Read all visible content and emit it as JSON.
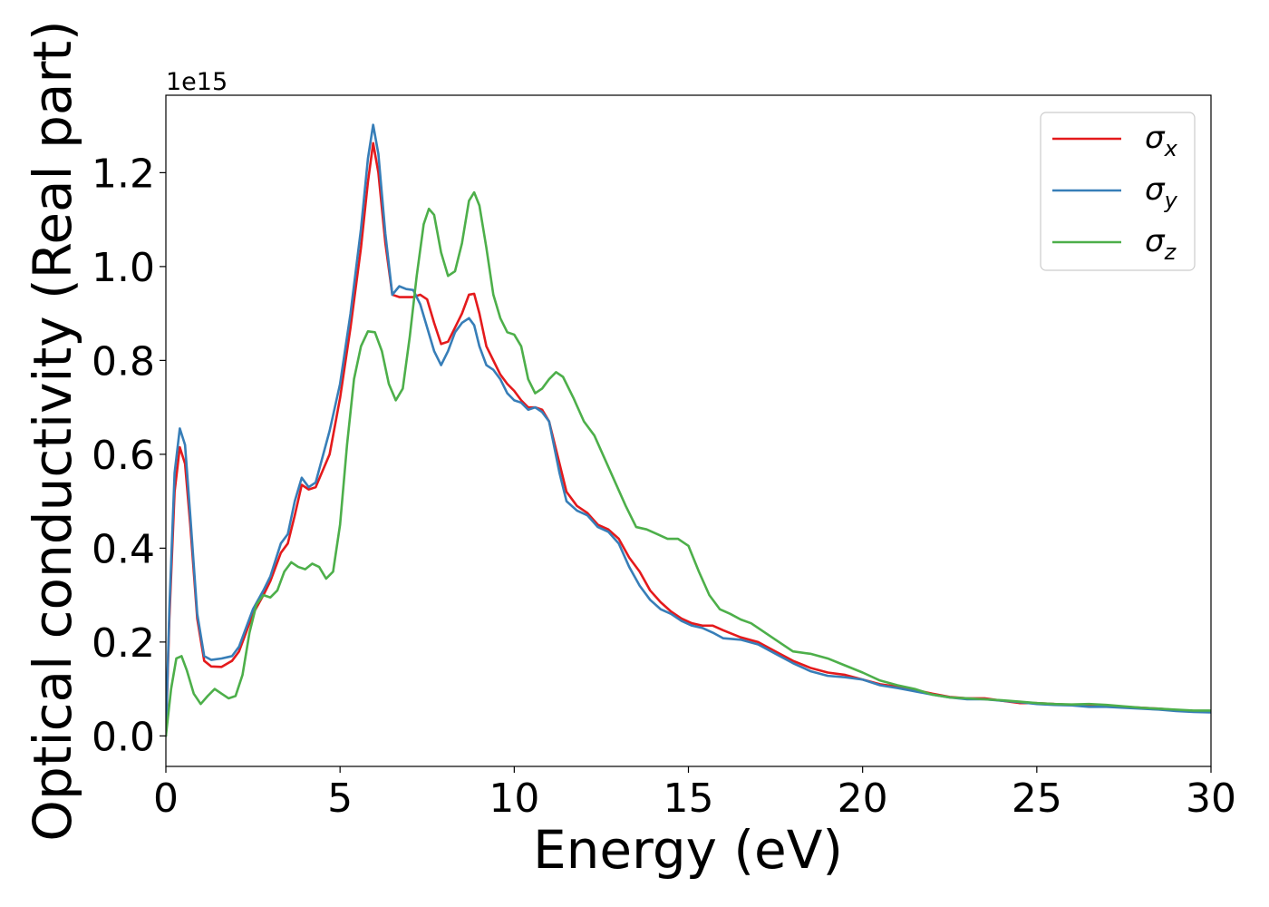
{
  "chart_data": {
    "type": "line",
    "xlabel": "Energy (eV)",
    "ylabel": "Optical conductivity (Real part)",
    "y_offset_text": "1e15",
    "xlim": [
      0,
      30
    ],
    "ylim": [
      -0.065,
      1.365
    ],
    "x_ticks": [
      0,
      5,
      10,
      15,
      20,
      25,
      30
    ],
    "x_tick_labels": [
      "0",
      "5",
      "10",
      "15",
      "20",
      "25",
      "30"
    ],
    "y_ticks": [
      0.0,
      0.2,
      0.4,
      0.6,
      0.8,
      1.0,
      1.2
    ],
    "y_tick_labels": [
      "0.0",
      "0.2",
      "0.4",
      "0.6",
      "0.8",
      "1.0",
      "1.2"
    ],
    "grid": false,
    "legend_position": "top-right",
    "series": [
      {
        "name": "σx",
        "symbol": "σ",
        "subscript": "x",
        "color": "#e41a1c",
        "points": [
          [
            0,
            0
          ],
          [
            0.1,
            0.25
          ],
          [
            0.25,
            0.52
          ],
          [
            0.4,
            0.615
          ],
          [
            0.55,
            0.58
          ],
          [
            0.7,
            0.45
          ],
          [
            0.9,
            0.25
          ],
          [
            1.1,
            0.16
          ],
          [
            1.3,
            0.148
          ],
          [
            1.6,
            0.147
          ],
          [
            1.9,
            0.16
          ],
          [
            2.1,
            0.18
          ],
          [
            2.3,
            0.22
          ],
          [
            2.5,
            0.26
          ],
          [
            2.8,
            0.3
          ],
          [
            3.0,
            0.33
          ],
          [
            3.3,
            0.39
          ],
          [
            3.5,
            0.41
          ],
          [
            3.7,
            0.47
          ],
          [
            3.9,
            0.535
          ],
          [
            4.1,
            0.525
          ],
          [
            4.3,
            0.53
          ],
          [
            4.7,
            0.6
          ],
          [
            5.0,
            0.72
          ],
          [
            5.3,
            0.87
          ],
          [
            5.6,
            1.04
          ],
          [
            5.8,
            1.18
          ],
          [
            5.95,
            1.263
          ],
          [
            6.1,
            1.2
          ],
          [
            6.3,
            1.05
          ],
          [
            6.5,
            0.94
          ],
          [
            6.7,
            0.935
          ],
          [
            6.9,
            0.935
          ],
          [
            7.1,
            0.935
          ],
          [
            7.3,
            0.94
          ],
          [
            7.5,
            0.93
          ],
          [
            7.7,
            0.88
          ],
          [
            7.9,
            0.835
          ],
          [
            8.1,
            0.84
          ],
          [
            8.3,
            0.87
          ],
          [
            8.5,
            0.9
          ],
          [
            8.7,
            0.94
          ],
          [
            8.85,
            0.942
          ],
          [
            9.0,
            0.9
          ],
          [
            9.2,
            0.83
          ],
          [
            9.4,
            0.8
          ],
          [
            9.6,
            0.77
          ],
          [
            9.8,
            0.75
          ],
          [
            10.0,
            0.735
          ],
          [
            10.2,
            0.715
          ],
          [
            10.4,
            0.7
          ],
          [
            10.6,
            0.7
          ],
          [
            10.8,
            0.695
          ],
          [
            11.0,
            0.67
          ],
          [
            11.3,
            0.58
          ],
          [
            11.5,
            0.52
          ],
          [
            11.8,
            0.49
          ],
          [
            12.1,
            0.475
          ],
          [
            12.4,
            0.45
          ],
          [
            12.7,
            0.44
          ],
          [
            13.0,
            0.42
          ],
          [
            13.3,
            0.38
          ],
          [
            13.6,
            0.35
          ],
          [
            13.9,
            0.31
          ],
          [
            14.2,
            0.285
          ],
          [
            14.5,
            0.265
          ],
          [
            14.8,
            0.25
          ],
          [
            15.1,
            0.24
          ],
          [
            15.4,
            0.235
          ],
          [
            15.7,
            0.235
          ],
          [
            16.0,
            0.225
          ],
          [
            16.5,
            0.21
          ],
          [
            17.0,
            0.2
          ],
          [
            17.5,
            0.18
          ],
          [
            18.0,
            0.16
          ],
          [
            18.5,
            0.145
          ],
          [
            19.0,
            0.135
          ],
          [
            19.5,
            0.13
          ],
          [
            20.0,
            0.12
          ],
          [
            20.5,
            0.11
          ],
          [
            21.0,
            0.105
          ],
          [
            21.5,
            0.098
          ],
          [
            22.0,
            0.09
          ],
          [
            22.5,
            0.083
          ],
          [
            23.0,
            0.08
          ],
          [
            23.5,
            0.08
          ],
          [
            24.0,
            0.075
          ],
          [
            24.5,
            0.07
          ],
          [
            25.0,
            0.07
          ],
          [
            25.5,
            0.068
          ],
          [
            26.0,
            0.066
          ],
          [
            26.5,
            0.065
          ],
          [
            27.0,
            0.064
          ],
          [
            27.5,
            0.062
          ],
          [
            28.0,
            0.06
          ],
          [
            28.5,
            0.058
          ],
          [
            29.0,
            0.055
          ],
          [
            29.5,
            0.053
          ],
          [
            30.0,
            0.052
          ]
        ]
      },
      {
        "name": "σy",
        "symbol": "σ",
        "subscript": "y",
        "color": "#377eb8",
        "points": [
          [
            0,
            0
          ],
          [
            0.1,
            0.27
          ],
          [
            0.25,
            0.56
          ],
          [
            0.4,
            0.655
          ],
          [
            0.55,
            0.62
          ],
          [
            0.7,
            0.47
          ],
          [
            0.9,
            0.26
          ],
          [
            1.1,
            0.17
          ],
          [
            1.3,
            0.162
          ],
          [
            1.6,
            0.165
          ],
          [
            1.9,
            0.17
          ],
          [
            2.1,
            0.19
          ],
          [
            2.3,
            0.23
          ],
          [
            2.5,
            0.27
          ],
          [
            2.8,
            0.31
          ],
          [
            3.0,
            0.34
          ],
          [
            3.3,
            0.41
          ],
          [
            3.5,
            0.43
          ],
          [
            3.7,
            0.5
          ],
          [
            3.9,
            0.55
          ],
          [
            4.1,
            0.53
          ],
          [
            4.3,
            0.54
          ],
          [
            4.7,
            0.65
          ],
          [
            5.0,
            0.75
          ],
          [
            5.3,
            0.9
          ],
          [
            5.6,
            1.08
          ],
          [
            5.8,
            1.23
          ],
          [
            5.95,
            1.302
          ],
          [
            6.1,
            1.24
          ],
          [
            6.3,
            1.07
          ],
          [
            6.5,
            0.94
          ],
          [
            6.7,
            0.958
          ],
          [
            6.9,
            0.952
          ],
          [
            7.1,
            0.95
          ],
          [
            7.3,
            0.92
          ],
          [
            7.5,
            0.87
          ],
          [
            7.7,
            0.82
          ],
          [
            7.9,
            0.79
          ],
          [
            8.1,
            0.82
          ],
          [
            8.3,
            0.86
          ],
          [
            8.5,
            0.88
          ],
          [
            8.7,
            0.89
          ],
          [
            8.85,
            0.875
          ],
          [
            9.0,
            0.83
          ],
          [
            9.2,
            0.79
          ],
          [
            9.4,
            0.78
          ],
          [
            9.6,
            0.76
          ],
          [
            9.8,
            0.73
          ],
          [
            10.0,
            0.715
          ],
          [
            10.2,
            0.71
          ],
          [
            10.4,
            0.695
          ],
          [
            10.6,
            0.7
          ],
          [
            10.8,
            0.69
          ],
          [
            11.0,
            0.67
          ],
          [
            11.3,
            0.56
          ],
          [
            11.5,
            0.5
          ],
          [
            11.8,
            0.48
          ],
          [
            12.1,
            0.47
          ],
          [
            12.4,
            0.445
          ],
          [
            12.7,
            0.435
          ],
          [
            13.0,
            0.41
          ],
          [
            13.3,
            0.36
          ],
          [
            13.6,
            0.32
          ],
          [
            13.9,
            0.29
          ],
          [
            14.2,
            0.27
          ],
          [
            14.5,
            0.26
          ],
          [
            14.8,
            0.245
          ],
          [
            15.1,
            0.235
          ],
          [
            15.4,
            0.23
          ],
          [
            15.7,
            0.22
          ],
          [
            16.0,
            0.208
          ],
          [
            16.5,
            0.205
          ],
          [
            17.0,
            0.195
          ],
          [
            17.5,
            0.175
          ],
          [
            18.0,
            0.155
          ],
          [
            18.5,
            0.138
          ],
          [
            19.0,
            0.128
          ],
          [
            19.5,
            0.125
          ],
          [
            20.0,
            0.12
          ],
          [
            20.5,
            0.108
          ],
          [
            21.0,
            0.102
          ],
          [
            21.5,
            0.095
          ],
          [
            22.0,
            0.088
          ],
          [
            22.5,
            0.082
          ],
          [
            23.0,
            0.078
          ],
          [
            23.5,
            0.078
          ],
          [
            24.0,
            0.075
          ],
          [
            24.5,
            0.072
          ],
          [
            25.0,
            0.068
          ],
          [
            25.5,
            0.066
          ],
          [
            26.0,
            0.065
          ],
          [
            26.5,
            0.062
          ],
          [
            27.0,
            0.062
          ],
          [
            27.5,
            0.06
          ],
          [
            28.0,
            0.058
          ],
          [
            28.5,
            0.056
          ],
          [
            29.0,
            0.053
          ],
          [
            29.5,
            0.051
          ],
          [
            30.0,
            0.05
          ]
        ]
      },
      {
        "name": "σz",
        "symbol": "σ",
        "subscript": "z",
        "color": "#4daf4a",
        "points": [
          [
            0,
            0
          ],
          [
            0.15,
            0.1
          ],
          [
            0.3,
            0.165
          ],
          [
            0.45,
            0.17
          ],
          [
            0.6,
            0.14
          ],
          [
            0.8,
            0.09
          ],
          [
            1.0,
            0.068
          ],
          [
            1.2,
            0.085
          ],
          [
            1.4,
            0.1
          ],
          [
            1.6,
            0.09
          ],
          [
            1.8,
            0.08
          ],
          [
            2.0,
            0.085
          ],
          [
            2.2,
            0.13
          ],
          [
            2.4,
            0.22
          ],
          [
            2.6,
            0.28
          ],
          [
            2.8,
            0.3
          ],
          [
            3.0,
            0.295
          ],
          [
            3.2,
            0.31
          ],
          [
            3.4,
            0.35
          ],
          [
            3.6,
            0.37
          ],
          [
            3.8,
            0.36
          ],
          [
            4.0,
            0.355
          ],
          [
            4.2,
            0.367
          ],
          [
            4.4,
            0.36
          ],
          [
            4.6,
            0.335
          ],
          [
            4.8,
            0.35
          ],
          [
            5.0,
            0.45
          ],
          [
            5.2,
            0.62
          ],
          [
            5.4,
            0.76
          ],
          [
            5.6,
            0.83
          ],
          [
            5.8,
            0.862
          ],
          [
            6.0,
            0.86
          ],
          [
            6.2,
            0.82
          ],
          [
            6.4,
            0.75
          ],
          [
            6.6,
            0.715
          ],
          [
            6.8,
            0.74
          ],
          [
            7.0,
            0.85
          ],
          [
            7.2,
            0.98
          ],
          [
            7.4,
            1.09
          ],
          [
            7.55,
            1.123
          ],
          [
            7.7,
            1.11
          ],
          [
            7.9,
            1.03
          ],
          [
            8.1,
            0.98
          ],
          [
            8.3,
            0.99
          ],
          [
            8.5,
            1.05
          ],
          [
            8.7,
            1.14
          ],
          [
            8.85,
            1.158
          ],
          [
            9.0,
            1.13
          ],
          [
            9.2,
            1.04
          ],
          [
            9.4,
            0.94
          ],
          [
            9.6,
            0.89
          ],
          [
            9.8,
            0.86
          ],
          [
            10.0,
            0.855
          ],
          [
            10.2,
            0.83
          ],
          [
            10.4,
            0.76
          ],
          [
            10.6,
            0.73
          ],
          [
            10.8,
            0.74
          ],
          [
            11.0,
            0.76
          ],
          [
            11.2,
            0.775
          ],
          [
            11.4,
            0.765
          ],
          [
            11.7,
            0.72
          ],
          [
            12.0,
            0.67
          ],
          [
            12.3,
            0.64
          ],
          [
            12.6,
            0.59
          ],
          [
            12.9,
            0.54
          ],
          [
            13.2,
            0.49
          ],
          [
            13.5,
            0.445
          ],
          [
            13.8,
            0.44
          ],
          [
            14.1,
            0.43
          ],
          [
            14.4,
            0.42
          ],
          [
            14.7,
            0.42
          ],
          [
            15.0,
            0.405
          ],
          [
            15.3,
            0.35
          ],
          [
            15.6,
            0.3
          ],
          [
            15.9,
            0.27
          ],
          [
            16.2,
            0.26
          ],
          [
            16.5,
            0.248
          ],
          [
            16.8,
            0.24
          ],
          [
            17.1,
            0.225
          ],
          [
            17.5,
            0.205
          ],
          [
            18.0,
            0.18
          ],
          [
            18.5,
            0.175
          ],
          [
            19.0,
            0.165
          ],
          [
            19.5,
            0.15
          ],
          [
            20.0,
            0.135
          ],
          [
            20.5,
            0.118
          ],
          [
            21.0,
            0.108
          ],
          [
            21.5,
            0.1
          ],
          [
            22.0,
            0.088
          ],
          [
            22.5,
            0.082
          ],
          [
            23.0,
            0.08
          ],
          [
            23.5,
            0.078
          ],
          [
            24.0,
            0.076
          ],
          [
            24.5,
            0.073
          ],
          [
            25.0,
            0.07
          ],
          [
            25.5,
            0.068
          ],
          [
            26.0,
            0.067
          ],
          [
            26.5,
            0.068
          ],
          [
            27.0,
            0.066
          ],
          [
            27.5,
            0.063
          ],
          [
            28.0,
            0.06
          ],
          [
            28.5,
            0.058
          ],
          [
            29.0,
            0.056
          ],
          [
            29.5,
            0.054
          ],
          [
            30.0,
            0.054
          ]
        ]
      }
    ]
  }
}
